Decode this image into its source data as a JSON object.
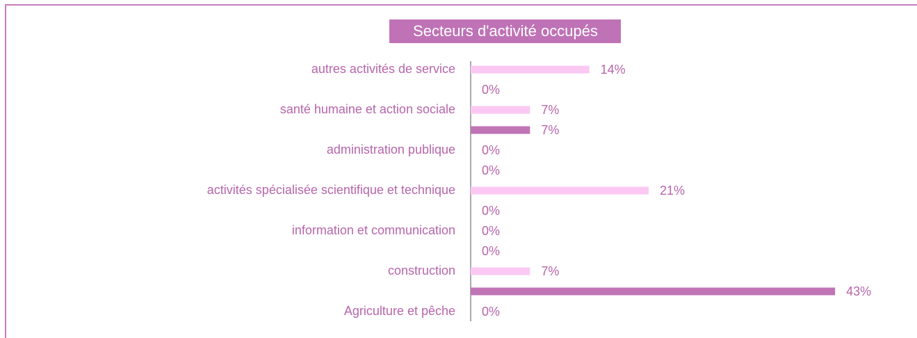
{
  "chart_data": {
    "type": "barh",
    "title": "Secteurs d'activité occupés",
    "categories": [
      "autres activités de service",
      null,
      "santé humaine et action sociale",
      null,
      "administration publique",
      null,
      "activités spécialisée scientifique et technique",
      null,
      "information et communication",
      null,
      "construction",
      null,
      "Agriculture et pêche"
    ],
    "values": [
      14,
      0,
      7,
      7,
      0,
      0,
      21,
      0,
      0,
      0,
      7,
      43,
      0
    ],
    "value_labels": [
      "14%",
      "0%",
      "7%",
      "7%",
      "0%",
      "0%",
      "21%",
      "0%",
      "0%",
      "0%",
      "7%",
      "43%",
      "0%"
    ],
    "colors": [
      "#fbc8f3",
      "#c074b6",
      "#fbc8f3",
      "#c074b6",
      "#fbc8f3",
      "#c074b6",
      "#fbc8f3",
      "#c074b6",
      "#fbc8f3",
      "#c074b6",
      "#fbc8f3",
      "#c074b6",
      "#fbc8f3"
    ],
    "xlim": [
      0,
      50
    ]
  }
}
